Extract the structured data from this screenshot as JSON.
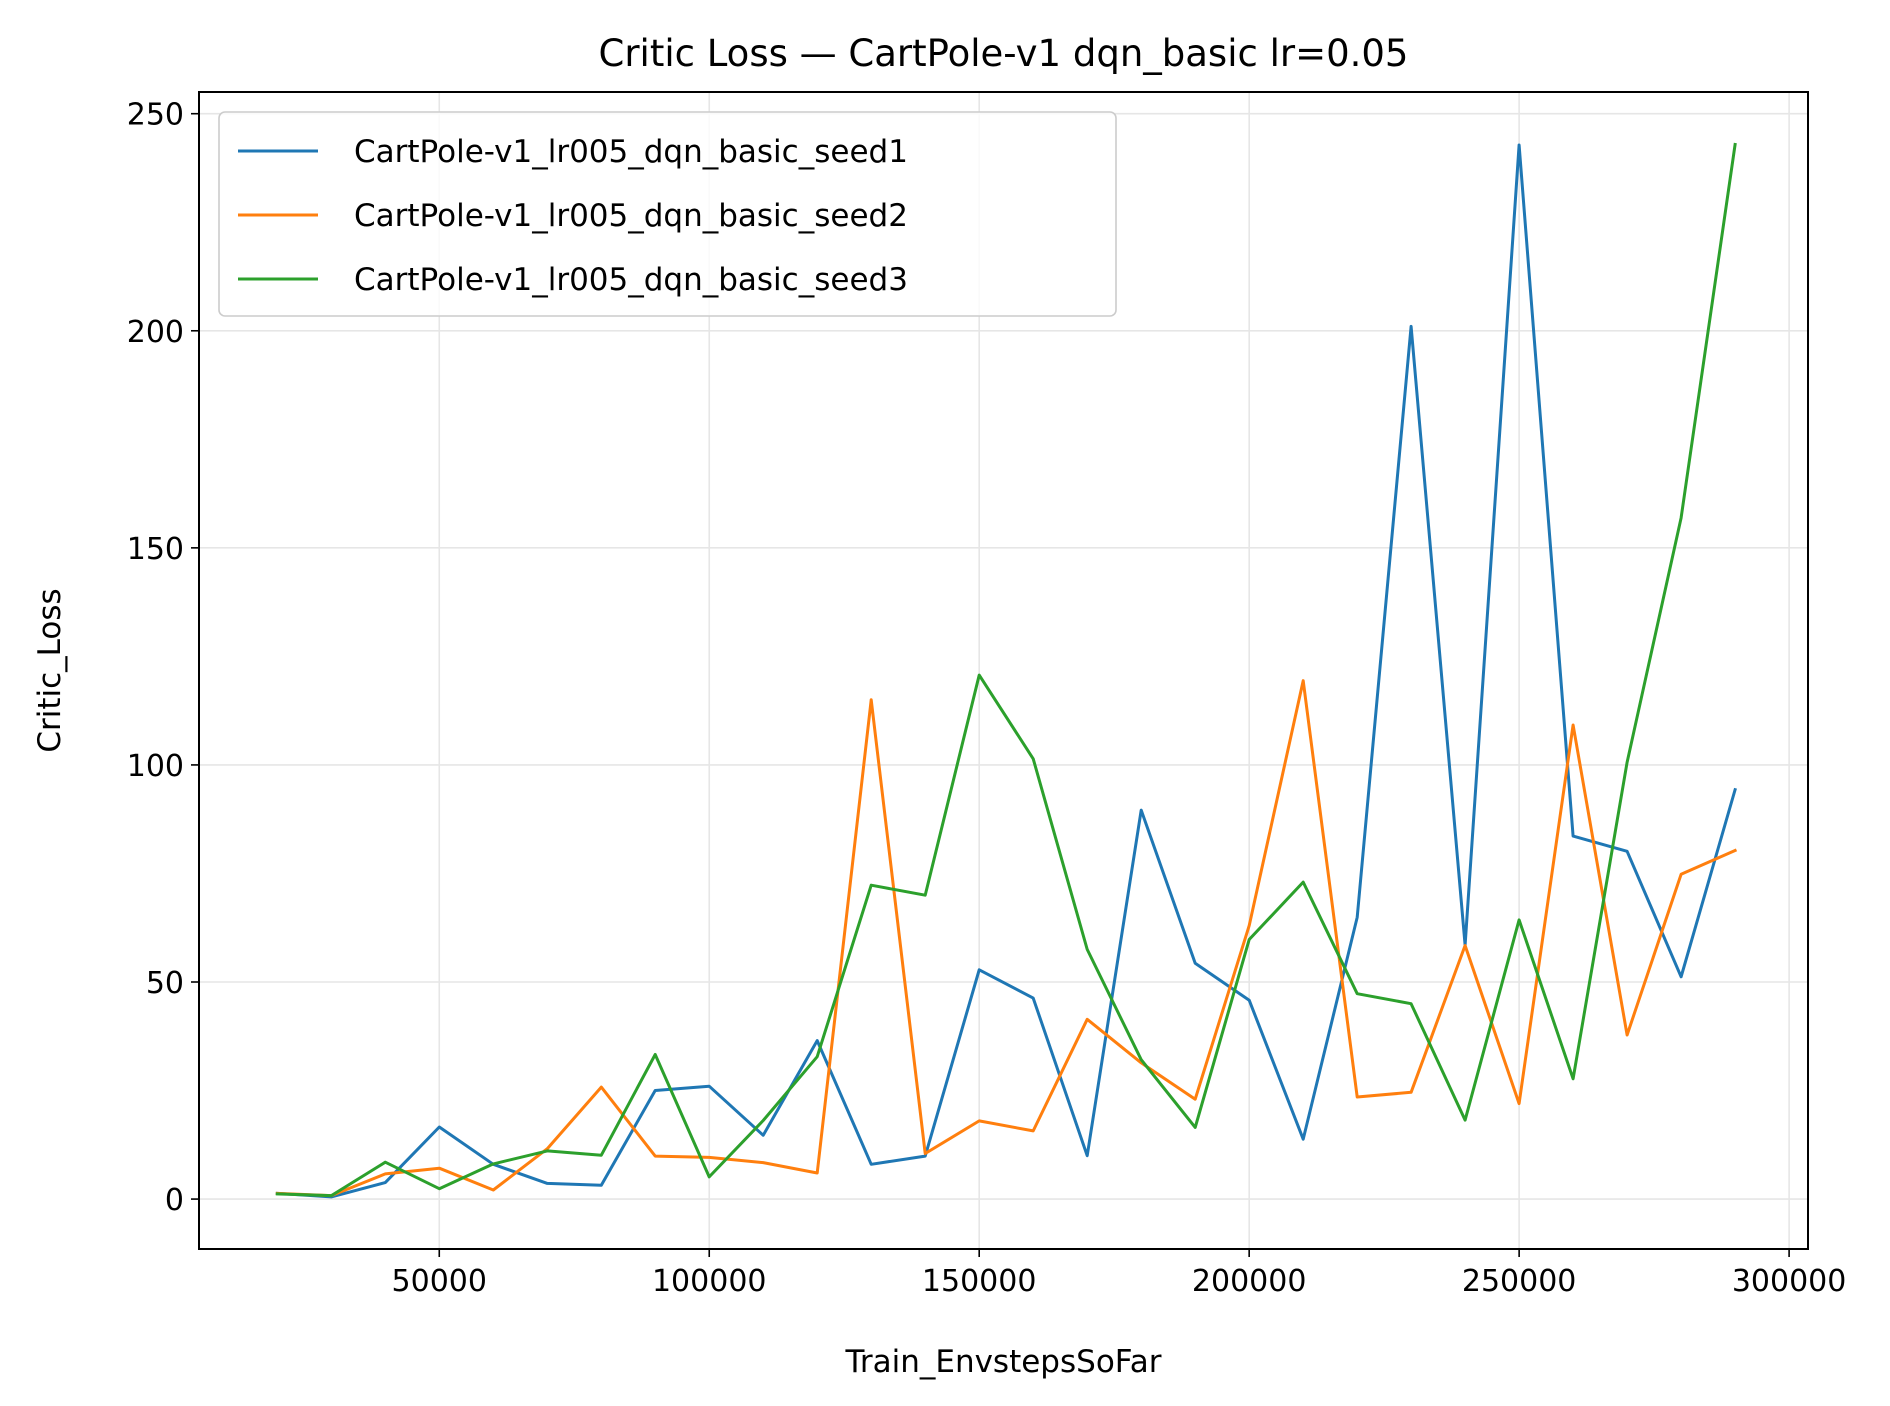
{
  "chart_data": {
    "type": "line",
    "title": "Critic Loss — CartPole-v1 dqn_basic lr=0.05",
    "xlabel": "Train_EnvstepsSoFar",
    "ylabel": "Critic_Loss",
    "xlim": [
      5500,
      303500
    ],
    "ylim": [
      -11.5,
      255
    ],
    "xticks": [
      50000,
      100000,
      150000,
      200000,
      250000,
      300000
    ],
    "yticks": [
      0,
      50,
      100,
      150,
      200,
      250
    ],
    "xtick_labels": [
      "50000",
      "100000",
      "150000",
      "200000",
      "250000",
      "300000"
    ],
    "ytick_labels": [
      "0",
      "50",
      "100",
      "150",
      "200",
      "250"
    ],
    "grid": true,
    "legend_position": "upper-left",
    "x": [
      20000,
      30000,
      40000,
      50000,
      60000,
      70000,
      80000,
      90000,
      100000,
      110000,
      120000,
      130000,
      140000,
      150000,
      160000,
      170000,
      180000,
      190000,
      200000,
      210000,
      220000,
      230000,
      240000,
      250000,
      260000,
      270000,
      280000,
      290000
    ],
    "series": [
      {
        "name": "CartPole-v1_lr005_dqn_basic_seed1",
        "color": "#1f77b4",
        "values": [
          1.3,
          0.5,
          3.8,
          16.6,
          8.0,
          3.6,
          3.2,
          25.0,
          26.0,
          14.7,
          36.5,
          8.0,
          9.9,
          52.8,
          46.3,
          10.0,
          89.6,
          54.3,
          45.8,
          13.8,
          64.9,
          201.0,
          58.5,
          242.8,
          83.6,
          80.1,
          51.2,
          94.3
        ]
      },
      {
        "name": "CartPole-v1_lr005_dqn_basic_seed2",
        "color": "#ff7f0e",
        "values": [
          1.3,
          0.8,
          5.8,
          7.1,
          2.1,
          11.6,
          25.8,
          9.9,
          9.6,
          8.4,
          6.0,
          115.0,
          10.5,
          18.0,
          15.7,
          41.4,
          31.4,
          23.0,
          63.0,
          119.4,
          23.5,
          24.6,
          58.4,
          22.0,
          109.2,
          37.8,
          74.8,
          80.3
        ]
      },
      {
        "name": "CartPole-v1_lr005_dqn_basic_seed3",
        "color": "#2ca02c",
        "values": [
          1.2,
          0.8,
          8.5,
          2.4,
          8.1,
          11.1,
          10.1,
          33.3,
          5.1,
          18.1,
          32.8,
          72.3,
          70.0,
          120.7,
          101.4,
          57.5,
          32.1,
          16.5,
          59.8,
          73.0,
          47.3,
          45.0,
          18.2,
          64.3,
          27.7,
          100.6,
          156.9,
          242.9
        ]
      }
    ]
  }
}
